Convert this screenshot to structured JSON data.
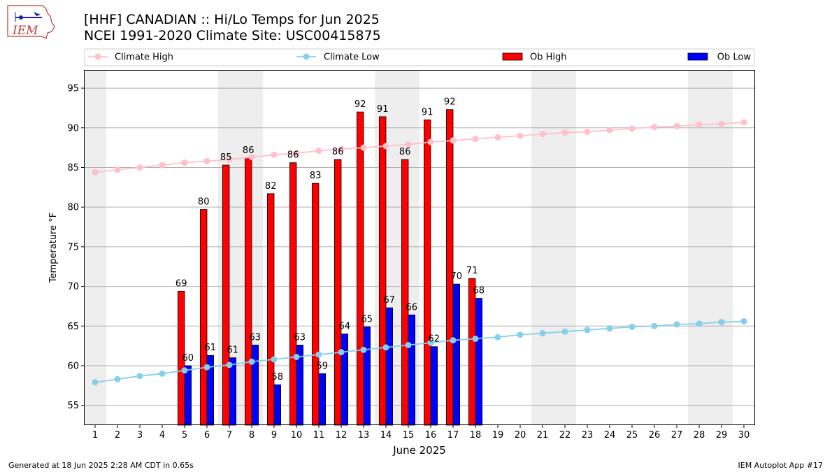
{
  "header": {
    "title_line1": "[HHF] CANADIAN :: Hi/Lo Temps for Jun 2025",
    "title_line2": "NCEI 1991-2020 Climate Site: USC00415875"
  },
  "logo": {
    "text": "IEM"
  },
  "footer": {
    "generated": "Generated at 18 Jun 2025 2:28 AM CDT in 0.65s",
    "app": "IEM Autoplot App #17"
  },
  "chart_data": {
    "type": "bar",
    "xlabel": "June 2025",
    "ylabel": "Temperature °F",
    "ylim": [
      52.5,
      97.3
    ],
    "xlim": [
      0.5,
      30.5
    ],
    "yticks": [
      55,
      60,
      65,
      70,
      75,
      80,
      85,
      90,
      95
    ],
    "days": [
      1,
      2,
      3,
      4,
      5,
      6,
      7,
      8,
      9,
      10,
      11,
      12,
      13,
      14,
      15,
      16,
      17,
      18,
      19,
      20,
      21,
      22,
      23,
      24,
      25,
      26,
      27,
      28,
      29,
      30
    ],
    "weekend_days": [
      1,
      7,
      8,
      14,
      15,
      21,
      22,
      28,
      29
    ],
    "grid": "horizontal",
    "legend": {
      "placement": "top",
      "entries": [
        {
          "label": "Climate High",
          "kind": "line",
          "color": "#ffc0cb"
        },
        {
          "label": "Climate Low",
          "kind": "line",
          "color": "#87ceeb"
        },
        {
          "label": "Ob High",
          "kind": "bar",
          "color": "#ff0000"
        },
        {
          "label": "Ob Low",
          "kind": "bar",
          "color": "#0000ff"
        }
      ]
    },
    "series": [
      {
        "name": "Ob High",
        "kind": "bar",
        "color": "#ff0000",
        "days": [
          5,
          6,
          7,
          8,
          9,
          10,
          11,
          12,
          13,
          14,
          15,
          16,
          17,
          18
        ],
        "values": [
          69.4,
          79.7,
          85.3,
          86.2,
          81.7,
          85.6,
          83.0,
          86.0,
          92.0,
          91.4,
          86.0,
          91.0,
          92.3,
          71.0
        ],
        "labels": [
          "69",
          "80",
          "85",
          "86",
          "82",
          "86",
          "83",
          "86",
          "92",
          "91",
          "86",
          "91",
          "92",
          "71"
        ]
      },
      {
        "name": "Ob Low",
        "kind": "bar",
        "color": "#0000ff",
        "days": [
          5,
          6,
          7,
          8,
          9,
          10,
          11,
          12,
          13,
          14,
          15,
          16,
          17,
          18
        ],
        "values": [
          60.0,
          61.3,
          61.0,
          62.6,
          57.6,
          62.6,
          59.0,
          64.0,
          64.9,
          67.3,
          66.4,
          62.4,
          70.3,
          68.5
        ],
        "labels": [
          "60",
          "61",
          "61",
          "63",
          "58",
          "63",
          "59",
          "64",
          "65",
          "67",
          "66",
          "62",
          "70",
          "68"
        ]
      },
      {
        "name": "Climate High",
        "kind": "line",
        "color": "#ffc0cb",
        "values": [
          84.4,
          84.7,
          85.0,
          85.3,
          85.6,
          85.8,
          86.0,
          86.3,
          86.6,
          86.8,
          87.1,
          87.3,
          87.5,
          87.7,
          87.9,
          88.2,
          88.4,
          88.6,
          88.8,
          89.0,
          89.2,
          89.4,
          89.5,
          89.7,
          89.9,
          90.1,
          90.2,
          90.4,
          90.5,
          90.7
        ]
      },
      {
        "name": "Climate Low",
        "kind": "line",
        "color": "#87ceeb",
        "values": [
          57.9,
          58.3,
          58.7,
          59.0,
          59.4,
          59.8,
          60.1,
          60.5,
          60.8,
          61.1,
          61.4,
          61.7,
          62.0,
          62.3,
          62.6,
          62.9,
          63.2,
          63.4,
          63.6,
          63.9,
          64.1,
          64.3,
          64.5,
          64.7,
          64.9,
          65.0,
          65.2,
          65.3,
          65.5,
          65.6
        ]
      }
    ]
  }
}
